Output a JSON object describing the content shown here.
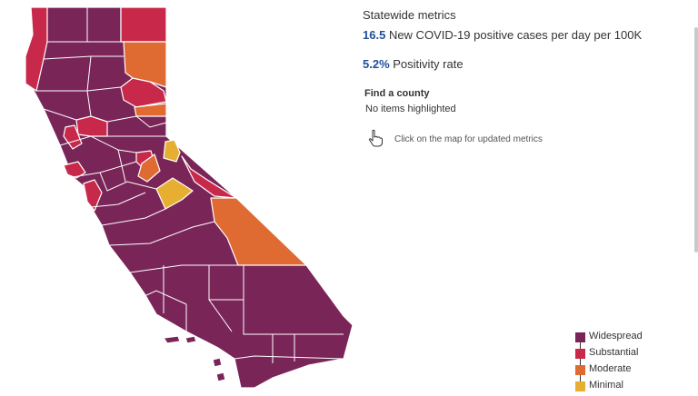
{
  "panel": {
    "title": "Statewide metrics",
    "metrics": [
      {
        "value": "16.5",
        "label": "New COVID-19 positive cases per day per 100K"
      },
      {
        "value": "5.2%",
        "label": "Positivity rate"
      }
    ],
    "find_label": "Find a county",
    "find_value": "No items highlighted",
    "hint": "Click on the map for updated metrics"
  },
  "legend": [
    {
      "label": "Widespread",
      "color": "#7a2558"
    },
    {
      "label": "Substantial",
      "color": "#c8294a"
    },
    {
      "label": "Moderate",
      "color": "#df6a32"
    },
    {
      "label": "Minimal",
      "color": "#e6af31"
    }
  ],
  "icons": {
    "hint": "pointer-hand-icon"
  }
}
